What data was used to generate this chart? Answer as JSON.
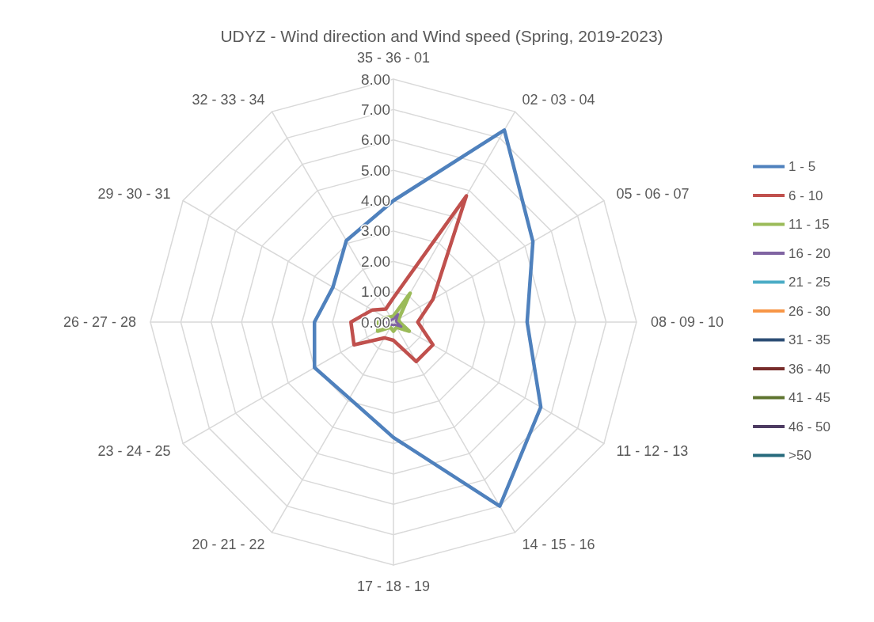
{
  "chart_data": {
    "type": "radar",
    "title": "UDYZ - Wind direction and Wind speed (Spring, 2019-2023)",
    "categories": [
      "35 - 36 - 01",
      "02 - 03 - 04",
      "05 - 06 - 07",
      "08 - 09 - 10",
      "11 - 12 - 13",
      "14 - 15 - 16",
      "17 - 18 - 19",
      "20 - 21 - 22",
      "23 - 24 - 25",
      "26 - 27 - 28",
      "29 - 30 - 31",
      "32 - 33 - 34"
    ],
    "series": [
      {
        "name": "1 - 5",
        "color": "#4f81bd",
        "values": [
          4.0,
          7.3,
          5.3,
          4.4,
          5.6,
          7.0,
          3.8,
          2.9,
          3.0,
          2.6,
          2.3,
          3.1
        ]
      },
      {
        "name": "6 - 10",
        "color": "#c0504d",
        "values": [
          0.8,
          4.8,
          1.5,
          0.8,
          1.5,
          1.5,
          0.6,
          0.6,
          1.5,
          1.4,
          0.8,
          0.5
        ]
      },
      {
        "name": "11 - 15",
        "color": "#9bbb59",
        "values": [
          0.2,
          1.1,
          0.2,
          0.2,
          0.6,
          0.2,
          0.3,
          0.2,
          0.6,
          0.5,
          0.3,
          0.2
        ]
      },
      {
        "name": "16 - 20",
        "color": "#8064a2",
        "values": [
          0.1,
          0.3,
          0.1,
          0.1,
          0.3,
          0.1,
          0.1,
          0.1,
          0.2,
          0.2,
          0.1,
          0.1
        ]
      },
      {
        "name": "21 - 25",
        "color": "#4bacc6",
        "values": [
          null,
          null,
          null,
          null,
          null,
          null,
          null,
          null,
          null,
          null,
          null,
          null
        ]
      },
      {
        "name": "26 - 30",
        "color": "#f79646",
        "values": [
          null,
          null,
          null,
          null,
          null,
          null,
          null,
          null,
          null,
          null,
          null,
          null
        ]
      },
      {
        "name": "31 - 35",
        "color": "#2c4d75",
        "values": [
          null,
          null,
          null,
          null,
          null,
          null,
          null,
          null,
          null,
          null,
          null,
          null
        ]
      },
      {
        "name": "36 - 40",
        "color": "#772c2a",
        "values": [
          null,
          null,
          null,
          null,
          null,
          null,
          null,
          null,
          null,
          null,
          null,
          null
        ]
      },
      {
        "name": "41 - 45",
        "color": "#5f7530",
        "values": [
          null,
          null,
          null,
          null,
          null,
          null,
          null,
          null,
          null,
          null,
          null,
          null
        ]
      },
      {
        "name": "46 - 50",
        "color": "#4d3b62",
        "values": [
          null,
          null,
          null,
          null,
          null,
          null,
          null,
          null,
          null,
          null,
          null,
          null
        ]
      },
      {
        "name": ">50",
        "color": "#276a7c",
        "values": [
          null,
          null,
          null,
          null,
          null,
          null,
          null,
          null,
          null,
          null,
          null,
          null
        ]
      }
    ],
    "ylim": [
      0,
      8
    ],
    "yticks": [
      {
        "value": 0,
        "label": "0.00"
      },
      {
        "value": 1,
        "label": "1.00"
      },
      {
        "value": 2,
        "label": "2.00"
      },
      {
        "value": 3,
        "label": "3.00"
      },
      {
        "value": 4,
        "label": "4.00"
      },
      {
        "value": 5,
        "label": "5.00"
      },
      {
        "value": 6,
        "label": "6.00"
      },
      {
        "value": 7,
        "label": "7.00"
      },
      {
        "value": 8,
        "label": "8.00"
      }
    ],
    "grid": true,
    "legend": "right",
    "marker": "none",
    "line_style": "solid"
  }
}
